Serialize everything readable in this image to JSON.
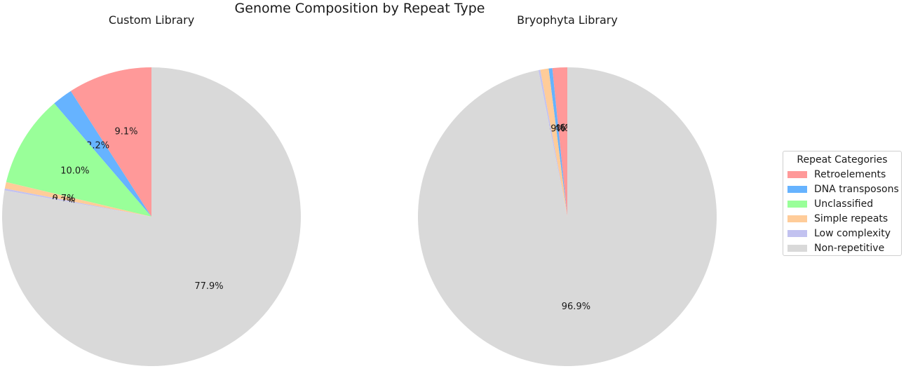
{
  "figure": {
    "suptitle": "Genome Composition by Repeat Type",
    "legend_title": "Repeat Categories"
  },
  "chart_data": [
    {
      "type": "pie",
      "title": "Custom Library",
      "categories": [
        "Retroelements",
        "DNA transposons",
        "Unclassified",
        "Simple repeats",
        "Low complexity",
        "Non-repetitive"
      ],
      "values": [
        9.1,
        2.2,
        10.0,
        0.7,
        0.2,
        77.9
      ],
      "labels": [
        "9.1%",
        "2.2%",
        "10.0%",
        "0.7%",
        "0.2%",
        "77.9%"
      ],
      "colors": [
        "#ff9999",
        "#66b3ff",
        "#99ff99",
        "#ffcc99",
        "#c2c2f0",
        "#d9d9d9"
      ],
      "start_angle": 90,
      "direction": "counterclockwise"
    },
    {
      "type": "pie",
      "title": "Bryophyta Library",
      "categories": [
        "Retroelements",
        "DNA transposons",
        "Unclassified",
        "Simple repeats",
        "Low complexity",
        "Non-repetitive"
      ],
      "values": [
        1.6,
        0.4,
        0.0,
        0.9,
        0.2,
        96.9
      ],
      "labels": [
        "1.6%",
        "0.4%",
        "",
        "0.9%",
        "",
        "96.9%"
      ],
      "colors": [
        "#ff9999",
        "#66b3ff",
        "#99ff99",
        "#ffcc99",
        "#c2c2f0",
        "#d9d9d9"
      ],
      "start_angle": 90,
      "direction": "counterclockwise"
    }
  ],
  "legend": {
    "items": [
      {
        "label": "Retroelements",
        "color": "#ff9999"
      },
      {
        "label": "DNA transposons",
        "color": "#66b3ff"
      },
      {
        "label": "Unclassified",
        "color": "#99ff99"
      },
      {
        "label": "Simple repeats",
        "color": "#ffcc99"
      },
      {
        "label": "Low complexity",
        "color": "#c2c2f0"
      },
      {
        "label": "Non-repetitive",
        "color": "#d9d9d9"
      }
    ]
  }
}
